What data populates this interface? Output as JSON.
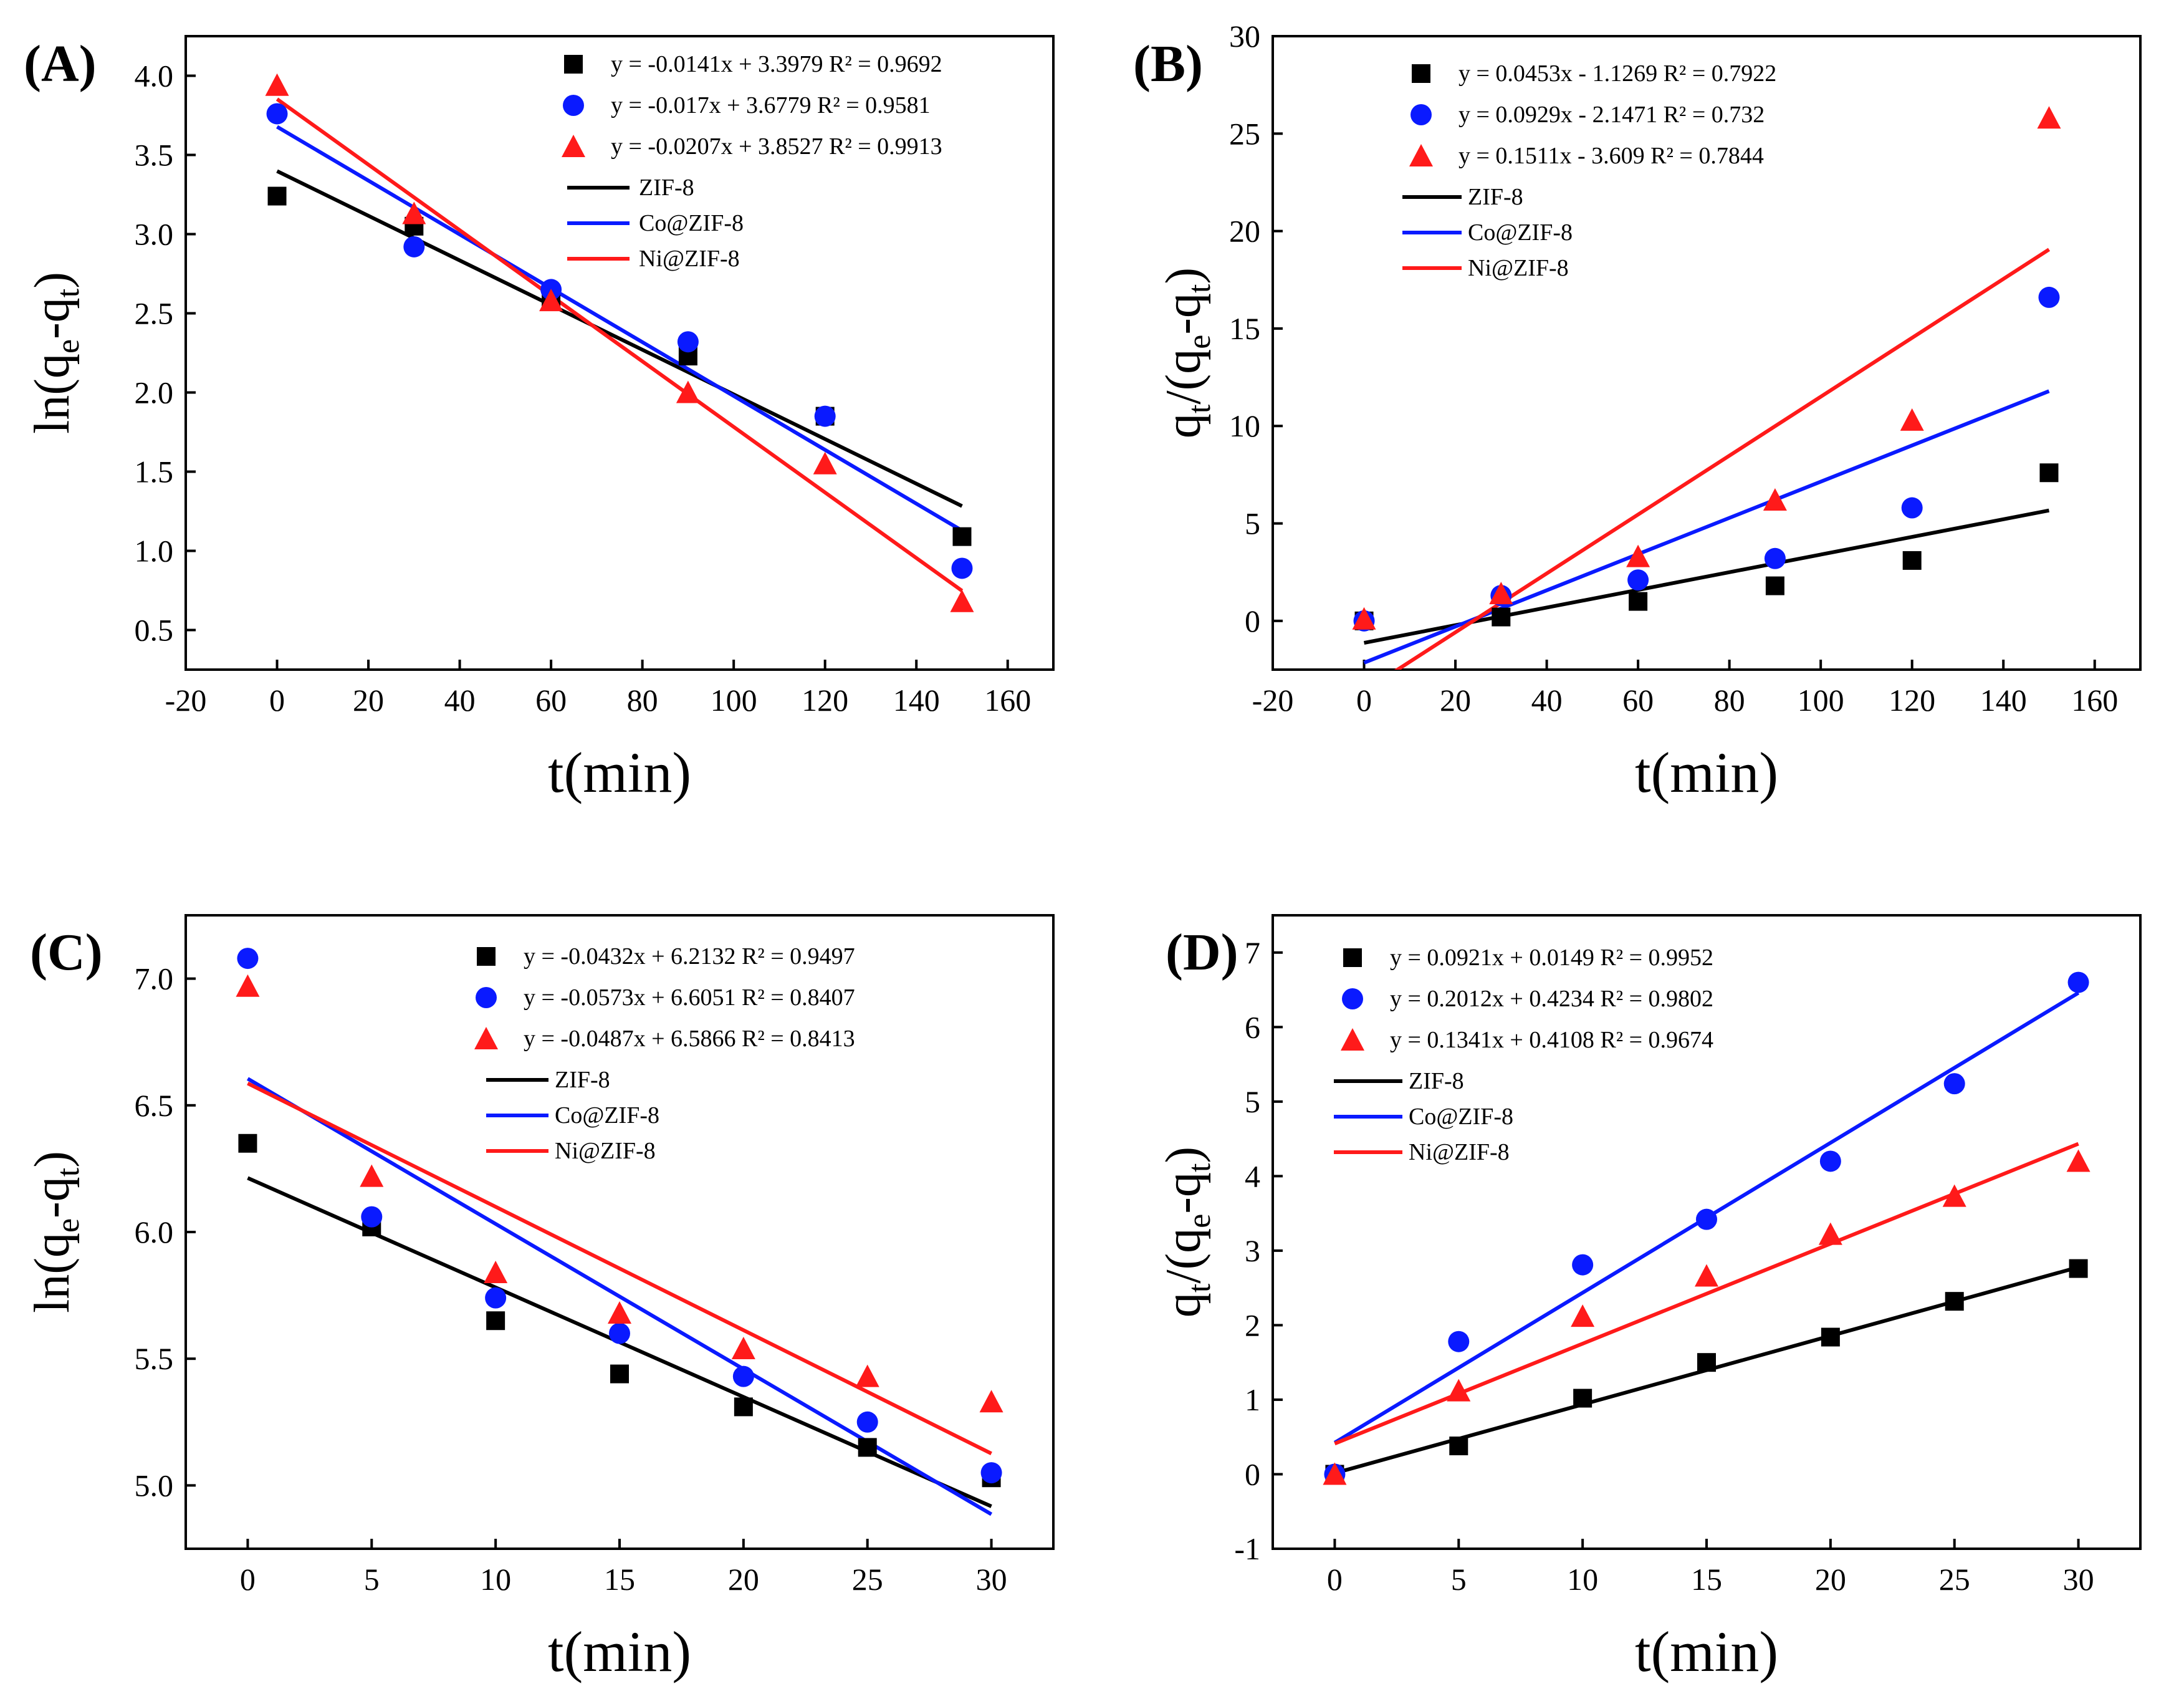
{
  "colors": {
    "ZIF-8": "#000000",
    "Co@ZIF-8": "#0a1aff",
    "Ni@ZIF-8": "#ff1a1a"
  },
  "chart_data": [
    {
      "type": "scatter",
      "panel_label": "(A)",
      "xlabel": "t(min)",
      "ylabel": "ln(qe-qt)",
      "xlim": [
        -20,
        170
      ],
      "ylim": [
        0.25,
        4.25
      ],
      "xticks": [
        -20,
        0,
        20,
        40,
        60,
        80,
        100,
        120,
        140,
        160
      ],
      "yticks": [
        0.5,
        1.0,
        1.5,
        2.0,
        2.5,
        3.0,
        3.5,
        4.0
      ],
      "ytick_labels": [
        "0.5",
        "1.0",
        "1.5",
        "2.0",
        "2.5",
        "3.0",
        "3.5",
        "4.0"
      ],
      "fit_range": [
        0,
        150
      ],
      "series": [
        {
          "name": "ZIF-8",
          "marker": "square",
          "x": [
            0,
            30,
            60,
            90,
            120,
            150
          ],
          "y": [
            3.24,
            3.05,
            2.58,
            2.23,
            1.85,
            1.09
          ],
          "fit": {
            "slope": -0.0141,
            "intercept": 3.3979
          },
          "equation": "y = -0.0141x + 3.3979 R² = 0.9692"
        },
        {
          "name": "Co@ZIF-8",
          "marker": "circle",
          "x": [
            0,
            30,
            60,
            90,
            120,
            150
          ],
          "y": [
            3.76,
            2.92,
            2.65,
            2.32,
            1.85,
            0.89
          ],
          "fit": {
            "slope": -0.017,
            "intercept": 3.6779
          },
          "equation": "y = -0.017x + 3.6779 R² = 0.9581"
        },
        {
          "name": "Ni@ZIF-8",
          "marker": "triangle",
          "x": [
            0,
            30,
            60,
            90,
            120,
            150
          ],
          "y": [
            3.94,
            3.13,
            2.58,
            2.0,
            1.55,
            0.68
          ],
          "fit": {
            "slope": -0.0207,
            "intercept": 3.8527
          },
          "equation": "y = -0.0207x + 3.8527 R² = 0.9913"
        }
      ],
      "legend_lines": [
        "ZIF-8",
        "Co@ZIF-8",
        "Ni@ZIF-8"
      ]
    },
    {
      "type": "scatter",
      "panel_label": "(B)",
      "xlabel": "t(min)",
      "ylabel": "qt/(qe-qt)",
      "xlim": [
        -20,
        170
      ],
      "ylim": [
        -2.5,
        30
      ],
      "xticks": [
        -20,
        0,
        20,
        40,
        60,
        80,
        100,
        120,
        140,
        160
      ],
      "yticks": [
        0,
        5,
        10,
        15,
        20,
        25,
        30
      ],
      "ytick_labels": [
        "0",
        "5",
        "10",
        "15",
        "20",
        "25",
        "30"
      ],
      "fit_range": [
        0,
        150
      ],
      "series": [
        {
          "name": "ZIF-8",
          "marker": "square",
          "x": [
            0,
            30,
            60,
            90,
            120,
            150
          ],
          "y": [
            0.0,
            0.2,
            1.0,
            1.8,
            3.1,
            7.6
          ],
          "fit": {
            "slope": 0.0453,
            "intercept": -1.1269
          },
          "equation": "y = 0.0453x - 1.1269 R² = 0.7922"
        },
        {
          "name": "Co@ZIF-8",
          "marker": "circle",
          "x": [
            0,
            30,
            60,
            90,
            120,
            150
          ],
          "y": [
            0.0,
            1.3,
            2.1,
            3.2,
            5.8,
            16.6
          ],
          "fit": {
            "slope": 0.0929,
            "intercept": -2.1471
          },
          "equation": "y = 0.0929x - 2.1471 R² = 0.732"
        },
        {
          "name": "Ni@ZIF-8",
          "marker": "triangle",
          "x": [
            0,
            30,
            60,
            90,
            120,
            150
          ],
          "y": [
            0.1,
            1.4,
            3.3,
            6.2,
            10.3,
            25.8
          ],
          "fit": {
            "slope": 0.1511,
            "intercept": -3.609
          },
          "equation": "y = 0.1511x - 3.609 R² = 0.7844"
        }
      ],
      "legend_lines": [
        "ZIF-8",
        "Co@ZIF-8",
        "Ni@ZIF-8"
      ]
    },
    {
      "type": "scatter",
      "panel_label": "(C)",
      "xlabel": "t(min)",
      "ylabel": "ln(qe-qt)",
      "xlim": [
        -2.5,
        32.5
      ],
      "ylim": [
        4.75,
        7.25
      ],
      "xticks": [
        0,
        5,
        10,
        15,
        20,
        25,
        30
      ],
      "yticks": [
        5.0,
        5.5,
        6.0,
        6.5,
        7.0
      ],
      "ytick_labels": [
        "5.0",
        "5.5",
        "6.0",
        "6.5",
        "7.0"
      ],
      "fit_range": [
        0,
        30
      ],
      "series": [
        {
          "name": "ZIF-8",
          "marker": "square",
          "x": [
            0,
            5,
            10,
            15,
            20,
            25,
            30
          ],
          "y": [
            6.35,
            6.02,
            5.65,
            5.44,
            5.31,
            5.15,
            5.03
          ],
          "fit": {
            "slope": -0.0432,
            "intercept": 6.2132
          },
          "equation": "y = -0.0432x + 6.2132 R² = 0.9497"
        },
        {
          "name": "Co@ZIF-8",
          "marker": "circle",
          "x": [
            0,
            5,
            10,
            15,
            20,
            25,
            30
          ],
          "y": [
            7.08,
            6.06,
            5.74,
            5.6,
            5.43,
            5.25,
            5.05
          ],
          "fit": {
            "slope": -0.0573,
            "intercept": 6.6051
          },
          "equation": "y = -0.0573x + 6.6051 R² = 0.8407"
        },
        {
          "name": "Ni@ZIF-8",
          "marker": "triangle",
          "x": [
            0,
            5,
            10,
            15,
            20,
            25,
            30
          ],
          "y": [
            6.97,
            6.22,
            5.84,
            5.68,
            5.54,
            5.43,
            5.33
          ],
          "fit": {
            "slope": -0.0487,
            "intercept": 6.5866
          },
          "equation": "y = -0.0487x + 6.5866 R² = 0.8413"
        }
      ],
      "legend_lines": [
        "ZIF-8",
        "Co@ZIF-8",
        "Ni@ZIF-8"
      ]
    },
    {
      "type": "scatter",
      "panel_label": "(D)",
      "xlabel": "t(min)",
      "ylabel": "qt/(qe-qt)",
      "xlim": [
        -2.5,
        32.5
      ],
      "ylim": [
        -1,
        7.5
      ],
      "xticks": [
        0,
        5,
        10,
        15,
        20,
        25,
        30
      ],
      "yticks": [
        -1,
        0,
        1,
        2,
        3,
        4,
        5,
        6,
        7
      ],
      "ytick_labels": [
        "-1",
        "0",
        "1",
        "2",
        "3",
        "4",
        "5",
        "6",
        "7"
      ],
      "fit_range": [
        0,
        30
      ],
      "series": [
        {
          "name": "ZIF-8",
          "marker": "square",
          "x": [
            0,
            5,
            10,
            15,
            20,
            25,
            30
          ],
          "y": [
            0.0,
            0.38,
            1.02,
            1.5,
            1.84,
            2.32,
            2.76
          ],
          "fit": {
            "slope": 0.0921,
            "intercept": 0.0149
          },
          "equation": "y = 0.0921x + 0.0149 R² = 0.9952"
        },
        {
          "name": "Co@ZIF-8",
          "marker": "circle",
          "x": [
            0,
            5,
            10,
            15,
            20,
            25,
            30
          ],
          "y": [
            0.0,
            1.78,
            2.81,
            3.42,
            4.2,
            5.24,
            6.6
          ],
          "fit": {
            "slope": 0.2012,
            "intercept": 0.4234
          },
          "equation": "y = 0.2012x + 0.4234 R² = 0.9802"
        },
        {
          "name": "Ni@ZIF-8",
          "marker": "triangle",
          "x": [
            0,
            5,
            10,
            15,
            20,
            25,
            30
          ],
          "y": [
            0.0,
            1.12,
            2.12,
            2.66,
            3.22,
            3.73,
            4.2
          ],
          "fit": {
            "slope": 0.1341,
            "intercept": 0.4108
          },
          "equation": "y = 0.1341x + 0.4108 R² = 0.9674"
        }
      ],
      "legend_lines": [
        "ZIF-8",
        "Co@ZIF-8",
        "Ni@ZIF-8"
      ]
    }
  ]
}
